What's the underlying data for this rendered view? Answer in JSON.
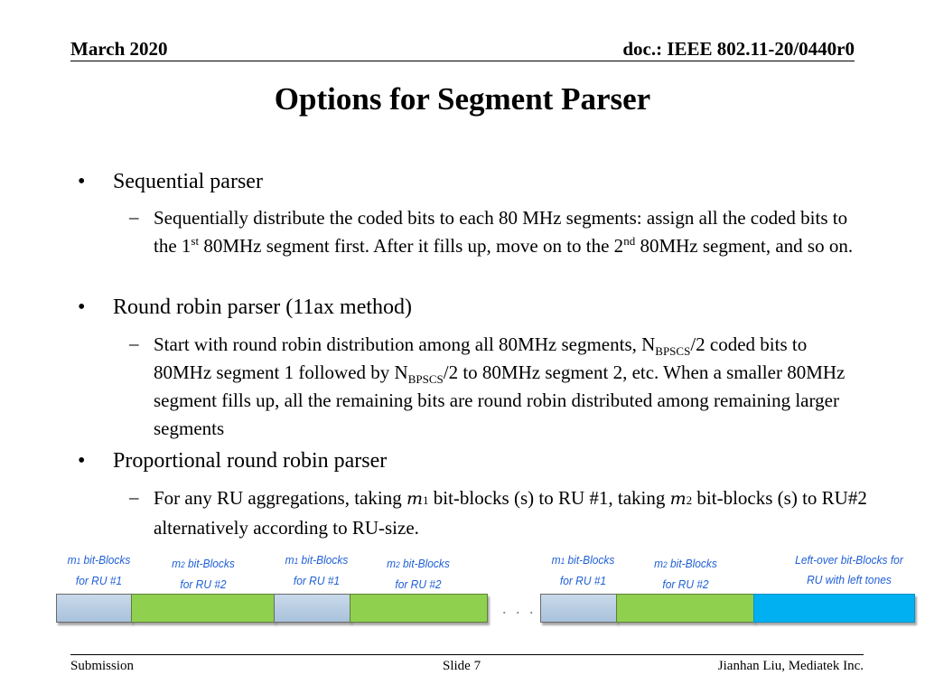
{
  "header": {
    "date": "March 2020",
    "doc_id": "doc.: IEEE 802.11-20/0440r0"
  },
  "title": "Options for Segment Parser",
  "bullets": [
    {
      "label": "Sequential parser",
      "sub": {
        "p1": "Sequentially distribute the coded bits to each 80 MHz segments: assign all the coded bits to the 1",
        "sup1": "st",
        "p2": " 80MHz segment first. After it fills up,  move on to the 2",
        "sup2": "nd",
        "p3": " 80MHz segment, and so on."
      }
    },
    {
      "label": "Round robin parser (11ax method)",
      "sub": {
        "p1": "Start with round robin distribution among all 80MHz segments, N",
        "s1": "BPSCS",
        "p2": "/2 coded bits to 80MHz segment 1 followed by N",
        "s2": "BPSCS",
        "p3": "/2 to 80MHz segment 2, etc.  When a smaller 80MHz segment fills up,  all the remaining bits are round robin distributed among remaining larger segments"
      }
    },
    {
      "label": "Proportional round robin parser",
      "sub": {
        "p1": "For any RU aggregations, taking ",
        "m1": "m",
        "m1sub": "1",
        "p2": " bit-blocks (s) to RU #1, taking ",
        "m2": "m",
        "m2sub": "2",
        "p3": " bit-blocks (s) to RU#2 alternatively according to RU-size."
      }
    }
  ],
  "diagram": {
    "labels": [
      {
        "m": "m",
        "sub": "1",
        "line1": " bit-Blocks",
        "line2": "for RU #1"
      },
      {
        "m": "m",
        "sub": "2",
        "line1": "  bit-Blocks",
        "line2": "for RU #2"
      },
      {
        "m": "m",
        "sub": "1",
        "line1": " bit-Blocks",
        "line2": "for RU #1"
      },
      {
        "m": "m",
        "sub": "2",
        "line1": " bit-Blocks",
        "line2": "for RU #2"
      },
      {
        "m": "m",
        "sub": "1",
        "line1": " bit-Blocks",
        "line2": "for RU #1"
      },
      {
        "m": "m",
        "sub": "2",
        "line1": " bit-Blocks",
        "line2": "for RU #2"
      },
      {
        "m": "",
        "sub": "",
        "line1": "Left-over bit-Blocks for",
        "line2": "RU with left tones"
      }
    ],
    "ellipsis": ". . .",
    "colors": {
      "ru1": "#b8cde3",
      "ru2": "#8fd14f",
      "leftover": "#00b0f0",
      "label": "#1f5fd6"
    }
  },
  "footer": {
    "left": "Submission",
    "center": "Slide 7",
    "right": "Jianhan Liu, Mediatek Inc."
  }
}
